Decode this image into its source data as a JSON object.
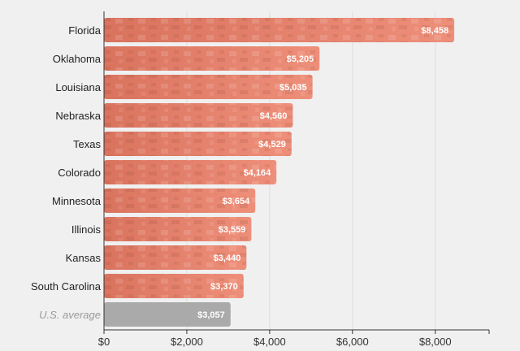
{
  "chart_data": {
    "type": "bar",
    "orientation": "horizontal",
    "categories": [
      "Florida",
      "Oklahoma",
      "Louisiana",
      "Nebraska",
      "Texas",
      "Colorado",
      "Minnesota",
      "Illinois",
      "Kansas",
      "South Carolina",
      "U.S. average"
    ],
    "values": [
      8458,
      5205,
      5035,
      4560,
      4529,
      4164,
      3654,
      3559,
      3440,
      3370,
      3057
    ],
    "value_labels": [
      "$8,458",
      "$5,205",
      "$5,035",
      "$4,560",
      "$4,529",
      "$4,164",
      "$3,654",
      "$3,559",
      "$3,440",
      "$3,370",
      "$3,057"
    ],
    "x_ticks": [
      0,
      2000,
      4000,
      6000,
      8000
    ],
    "x_tick_labels": [
      "$0",
      "$2,000",
      "$4,000",
      "$6,000",
      "$8,000"
    ],
    "xlim": [
      0,
      9300
    ],
    "title": "",
    "xlabel": "",
    "ylabel": "",
    "grid": "vertical",
    "legend": "none",
    "colors": {
      "bar": "#e8806a",
      "bar_dark": "#c0604c",
      "average_bar": "#aaaaaa",
      "grid": "#dddddd",
      "axis": "#333333",
      "background": "#f0f0f0"
    }
  }
}
